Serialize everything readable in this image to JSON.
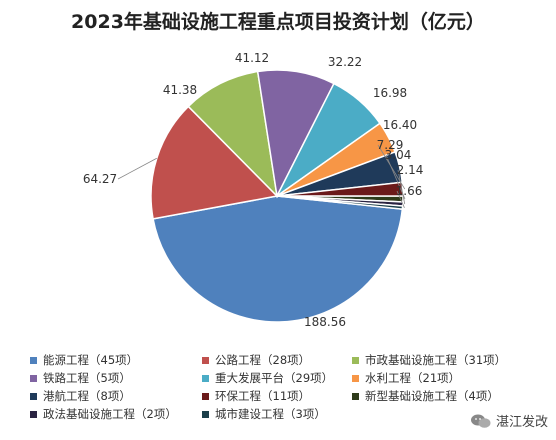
{
  "chart_data": {
    "type": "pie",
    "title": "2023年基础设施工程重点项目投资计划（亿元）",
    "slices": [
      {
        "label": "能源工程（45项）",
        "value": 188.56,
        "color": "#4f81bd"
      },
      {
        "label": "公路工程（28项）",
        "value": 64.27,
        "color": "#c0504d"
      },
      {
        "label": "市政基础设施工程（31项）",
        "value": 41.38,
        "color": "#9bbb59"
      },
      {
        "label": "铁路工程（5项）",
        "value": 41.12,
        "color": "#8064a2"
      },
      {
        "label": "重大发展平台（29项）",
        "value": 32.22,
        "color": "#4bacc6"
      },
      {
        "label": "水利工程（21项）",
        "value": 16.98,
        "color": "#f79646"
      },
      {
        "label": "港航工程（8项）",
        "value": 16.4,
        "color": "#1f3a5a"
      },
      {
        "label": "环保工程（11项）",
        "value": 7.29,
        "color": "#6b1a1a"
      },
      {
        "label": "新型基础设施工程（4项）",
        "value": 3.04,
        "color": "#2e3b1a"
      },
      {
        "label": "政法基础设施工程（2项）",
        "value": 2.14,
        "color": "#2a2342"
      },
      {
        "label": "城市建设工程（3项）",
        "value": 1.66,
        "color": "#1b3f4a"
      }
    ],
    "value_labels": [
      "188.56",
      "64.27",
      "41.38",
      "41.12",
      "32.22",
      "16.98",
      "16.40",
      "7.29",
      "3.04",
      "2.14",
      "1.66"
    ],
    "legend_position": "bottom"
  },
  "watermark": {
    "text": "湛江发改",
    "icon": "wechat-icon"
  }
}
